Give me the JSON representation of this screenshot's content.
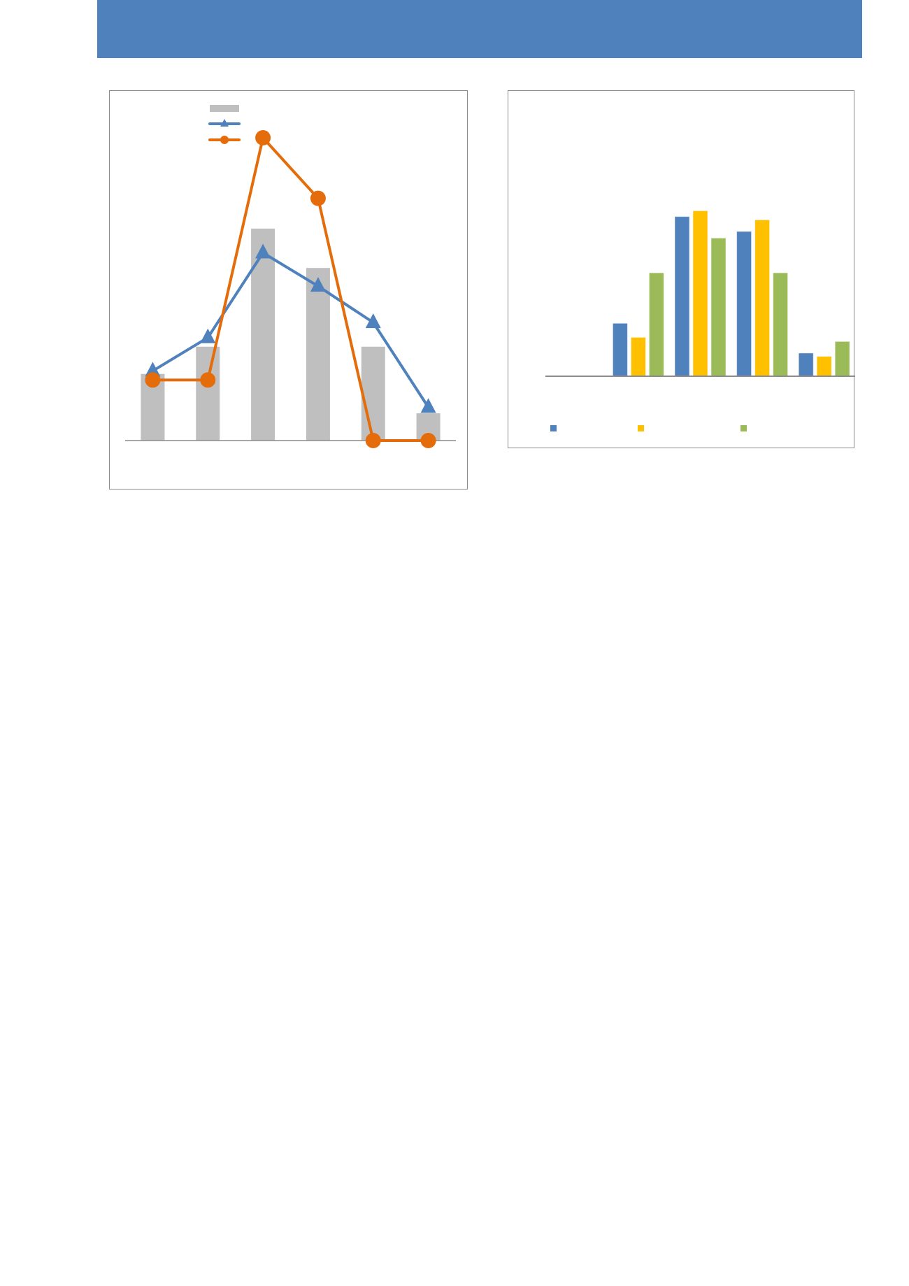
{
  "header": {
    "color": "#4f81bd"
  },
  "chart_data": [
    {
      "type": "bar+line",
      "title": "",
      "xlabel": "",
      "ylabel": "",
      "categories": [
        "",
        "",
        "",
        "",
        "",
        ""
      ],
      "ylim": [
        0,
        11
      ],
      "grid": false,
      "legend": "top-center",
      "series": [
        {
          "kind": "bar",
          "color": "#bfbfbf",
          "values": [
            2.2,
            3.1,
            7.0,
            5.7,
            3.1,
            0.9
          ]
        },
        {
          "kind": "line",
          "marker": "triangle",
          "color": "#4f81bd",
          "values": [
            2.3,
            3.4,
            6.2,
            5.1,
            3.9,
            1.1
          ]
        },
        {
          "kind": "line",
          "marker": "circle",
          "color": "#e46c0a",
          "values": [
            2.0,
            2.0,
            10.0,
            8.0,
            0,
            0
          ]
        }
      ]
    },
    {
      "type": "bar",
      "title": "",
      "xlabel": "",
      "ylabel": "",
      "categories": [
        "",
        "",
        "",
        "",
        ""
      ],
      "ylim": [
        0,
        30
      ],
      "grid": false,
      "legend": "bottom",
      "series": [
        {
          "color": "#4f81bd",
          "values": [
            0,
            6.4,
            19.3,
            17.5,
            2.8
          ]
        },
        {
          "color": "#ffc000",
          "values": [
            0,
            4.7,
            20.0,
            18.9,
            2.4
          ]
        },
        {
          "color": "#9bbb59",
          "values": [
            0,
            12.5,
            16.7,
            12.5,
            4.2
          ]
        }
      ]
    }
  ]
}
